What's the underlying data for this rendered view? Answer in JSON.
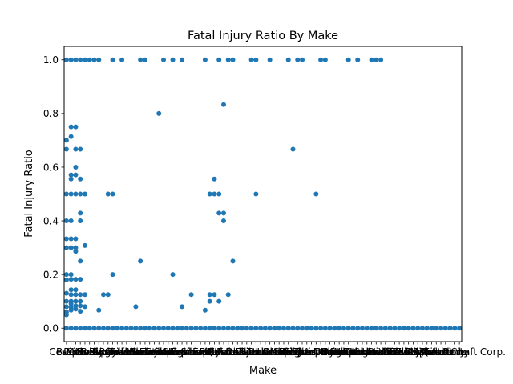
{
  "chart_data": {
    "type": "scatter",
    "title": "Fatal Injury Ratio By Make",
    "xlabel": "Make",
    "ylabel": "Fatal Injury Ratio",
    "ylim": [
      -0.05,
      1.05
    ],
    "y_ticks": [
      "0.0",
      "0.2",
      "0.4",
      "0.6",
      "0.8",
      "1.0"
    ],
    "y_tick_values": [
      0.0,
      0.2,
      0.4,
      0.6,
      0.8,
      1.0
    ],
    "x_tick_labels_visible": [
      "Cessna",
      "Beech",
      "Piper",
      "Cirrus",
      "Mooney",
      "Bell",
      "Boeing",
      "Robinson",
      "Aerospatiale",
      "Airbus",
      "Embraer",
      "Bombardier",
      "Raytheon",
      "Textron",
      "Gulfstream",
      "Lake",
      "Maule",
      "Luscombe",
      "Bellanca",
      "Grumman",
      "Ercoupe",
      "Stinson",
      "Taylorcraft",
      "Aviat",
      "Champion",
      "Hughes",
      "Schweizer",
      "Enstrom",
      "Eurocopter",
      "Sikorsky",
      "Extra",
      "Pitts",
      "Vans",
      "Kitfox",
      "Zenith",
      "Rans",
      "Quicksilver",
      "Fairchild",
      "Learjet",
      "Dassault",
      "Pilatus",
      "Socata",
      "Diamond",
      "Tecnam",
      "Columbia",
      "Lancair",
      "Glasair",
      "Murphy",
      "Sonex",
      "Rutan",
      "Varieze",
      "Wag-Aero",
      "Thorp",
      "Christen",
      "Flight Design",
      "American Champion",
      "Commander",
      "Navion",
      "Ryan",
      "Howard",
      "Waco",
      "Great Lakes",
      "Stearman",
      "North American",
      "Douglas",
      "Lockheed",
      "Convair",
      "De Havilland",
      "Helio",
      "Dornier",
      "Let",
      "PZL",
      "Yakovlev",
      "Zlin",
      "Mitsubishi",
      "Fuji",
      "Partenavia",
      "Siai-Marchetti",
      "Ayres",
      "Air Tractor",
      "Thrush",
      "Weatherly",
      "Quad City",
      "Aeronca",
      "Bede",
      "Sport Aircraft Corp."
    ],
    "x_categories_count": 86,
    "series": [
      {
        "color": "#1f77b4",
        "points": [
          [
            0,
            1.0
          ],
          [
            0,
            0.7
          ],
          [
            0,
            0.667
          ],
          [
            0,
            0.5
          ],
          [
            0,
            0.4
          ],
          [
            0,
            0.333
          ],
          [
            0,
            0.3
          ],
          [
            0,
            0.2
          ],
          [
            0,
            0.18
          ],
          [
            0,
            0.13
          ],
          [
            0,
            0.1
          ],
          [
            0,
            0.08
          ],
          [
            0,
            0.06
          ],
          [
            0,
            0.05
          ],
          [
            0,
            0.0
          ],
          [
            1,
            1.0
          ],
          [
            1,
            0.75
          ],
          [
            1,
            0.714
          ],
          [
            1,
            0.571
          ],
          [
            1,
            0.556
          ],
          [
            1,
            0.5
          ],
          [
            1,
            0.4
          ],
          [
            1,
            0.333
          ],
          [
            1,
            0.3
          ],
          [
            1,
            0.2
          ],
          [
            1,
            0.182
          ],
          [
            1,
            0.143
          ],
          [
            1,
            0.125
          ],
          [
            1,
            0.1
          ],
          [
            1,
            0.091
          ],
          [
            1,
            0.077
          ],
          [
            1,
            0.067
          ],
          [
            1,
            0.0
          ],
          [
            2,
            1.0
          ],
          [
            2,
            0.75
          ],
          [
            2,
            0.667
          ],
          [
            2,
            0.6
          ],
          [
            2,
            0.571
          ],
          [
            2,
            0.5
          ],
          [
            2,
            0.333
          ],
          [
            2,
            0.3
          ],
          [
            2,
            0.286
          ],
          [
            2,
            0.182
          ],
          [
            2,
            0.143
          ],
          [
            2,
            0.125
          ],
          [
            2,
            0.1
          ],
          [
            2,
            0.083
          ],
          [
            2,
            0.071
          ],
          [
            2,
            0.0
          ],
          [
            3,
            1.0
          ],
          [
            3,
            0.667
          ],
          [
            3,
            0.556
          ],
          [
            3,
            0.5
          ],
          [
            3,
            0.429
          ],
          [
            3,
            0.4
          ],
          [
            3,
            0.25
          ],
          [
            3,
            0.182
          ],
          [
            3,
            0.125
          ],
          [
            3,
            0.1
          ],
          [
            3,
            0.083
          ],
          [
            3,
            0.063
          ],
          [
            3,
            0.0
          ],
          [
            4,
            1.0
          ],
          [
            4,
            0.5
          ],
          [
            4,
            0.308
          ],
          [
            4,
            0.125
          ],
          [
            4,
            0.08
          ],
          [
            4,
            0.0
          ],
          [
            5,
            1.0
          ],
          [
            5,
            0.0
          ],
          [
            6,
            1.0
          ],
          [
            6,
            0.0
          ],
          [
            7,
            1.0
          ],
          [
            7,
            0.067
          ],
          [
            7,
            0.0
          ],
          [
            8,
            0.125
          ],
          [
            8,
            0.0
          ],
          [
            9,
            0.5
          ],
          [
            9,
            0.125
          ],
          [
            9,
            0.0
          ],
          [
            10,
            1.0
          ],
          [
            10,
            0.5
          ],
          [
            10,
            0.2
          ],
          [
            10,
            0.0
          ],
          [
            11,
            0.0
          ],
          [
            12,
            1.0
          ],
          [
            12,
            0.0
          ],
          [
            13,
            0.0
          ],
          [
            14,
            0.0
          ],
          [
            15,
            0.08
          ],
          [
            15,
            0.0
          ],
          [
            16,
            1.0
          ],
          [
            16,
            0.25
          ],
          [
            16,
            0.0
          ],
          [
            17,
            1.0
          ],
          [
            17,
            0.0
          ],
          [
            18,
            0.0
          ],
          [
            19,
            0.0
          ],
          [
            20,
            0.8
          ],
          [
            20,
            0.0
          ],
          [
            21,
            1.0
          ],
          [
            21,
            0.0
          ],
          [
            22,
            0.0
          ],
          [
            23,
            1.0
          ],
          [
            23,
            0.2
          ],
          [
            23,
            0.0
          ],
          [
            24,
            0.0
          ],
          [
            25,
            1.0
          ],
          [
            25,
            0.08
          ],
          [
            25,
            0.0
          ],
          [
            26,
            0.0
          ],
          [
            27,
            0.125
          ],
          [
            27,
            0.0
          ],
          [
            28,
            0.0
          ],
          [
            29,
            0.0
          ],
          [
            30,
            1.0
          ],
          [
            30,
            0.067
          ],
          [
            30,
            0.0
          ],
          [
            31,
            0.5
          ],
          [
            31,
            0.125
          ],
          [
            31,
            0.1
          ],
          [
            31,
            0.0
          ],
          [
            32,
            0.556
          ],
          [
            32,
            0.5
          ],
          [
            32,
            0.125
          ],
          [
            32,
            0.0
          ],
          [
            33,
            1.0
          ],
          [
            33,
            0.5
          ],
          [
            33,
            0.429
          ],
          [
            33,
            0.1
          ],
          [
            33,
            0.0
          ],
          [
            34,
            0.833
          ],
          [
            34,
            0.429
          ],
          [
            34,
            0.4
          ],
          [
            34,
            0.0
          ],
          [
            35,
            1.0
          ],
          [
            35,
            0.125
          ],
          [
            35,
            0.0
          ],
          [
            36,
            1.0
          ],
          [
            36,
            0.25
          ],
          [
            36,
            0.0
          ],
          [
            37,
            0.0
          ],
          [
            38,
            0.0
          ],
          [
            39,
            0.0
          ],
          [
            40,
            1.0
          ],
          [
            40,
            0.0
          ],
          [
            41,
            1.0
          ],
          [
            41,
            0.5
          ],
          [
            41,
            0.0
          ],
          [
            42,
            0.0
          ],
          [
            43,
            0.0
          ],
          [
            44,
            1.0
          ],
          [
            44,
            0.0
          ],
          [
            45,
            0.0
          ],
          [
            46,
            0.0
          ],
          [
            47,
            0.0
          ],
          [
            48,
            1.0
          ],
          [
            48,
            0.0
          ],
          [
            49,
            0.667
          ],
          [
            49,
            0.0
          ],
          [
            50,
            1.0
          ],
          [
            50,
            0.0
          ],
          [
            51,
            1.0
          ],
          [
            51,
            0.0
          ],
          [
            52,
            0.0
          ],
          [
            53,
            0.0
          ],
          [
            54,
            0.5
          ],
          [
            54,
            0.0
          ],
          [
            55,
            1.0
          ],
          [
            55,
            0.0
          ],
          [
            56,
            1.0
          ],
          [
            56,
            0.0
          ],
          [
            57,
            0.0
          ],
          [
            58,
            0.0
          ],
          [
            59,
            0.0
          ],
          [
            60,
            0.0
          ],
          [
            61,
            1.0
          ],
          [
            61,
            0.0
          ],
          [
            62,
            0.0
          ],
          [
            63,
            1.0
          ],
          [
            63,
            0.0
          ],
          [
            64,
            0.0
          ],
          [
            65,
            0.0
          ],
          [
            66,
            1.0
          ],
          [
            66,
            0.0
          ],
          [
            67,
            1.0
          ],
          [
            67,
            0.0
          ],
          [
            68,
            1.0
          ],
          [
            68,
            0.0
          ],
          [
            69,
            0.0
          ],
          [
            70,
            0.0
          ],
          [
            71,
            0.0
          ],
          [
            72,
            0.0
          ],
          [
            73,
            0.0
          ],
          [
            74,
            0.0
          ],
          [
            75,
            0.0
          ],
          [
            76,
            0.0
          ],
          [
            77,
            0.0
          ],
          [
            78,
            0.0
          ],
          [
            79,
            0.0
          ],
          [
            80,
            0.0
          ],
          [
            81,
            0.0
          ],
          [
            82,
            0.0
          ],
          [
            83,
            0.0
          ],
          [
            84,
            0.0
          ],
          [
            85,
            0.0
          ]
        ]
      }
    ],
    "grid": false,
    "legend": "none"
  }
}
